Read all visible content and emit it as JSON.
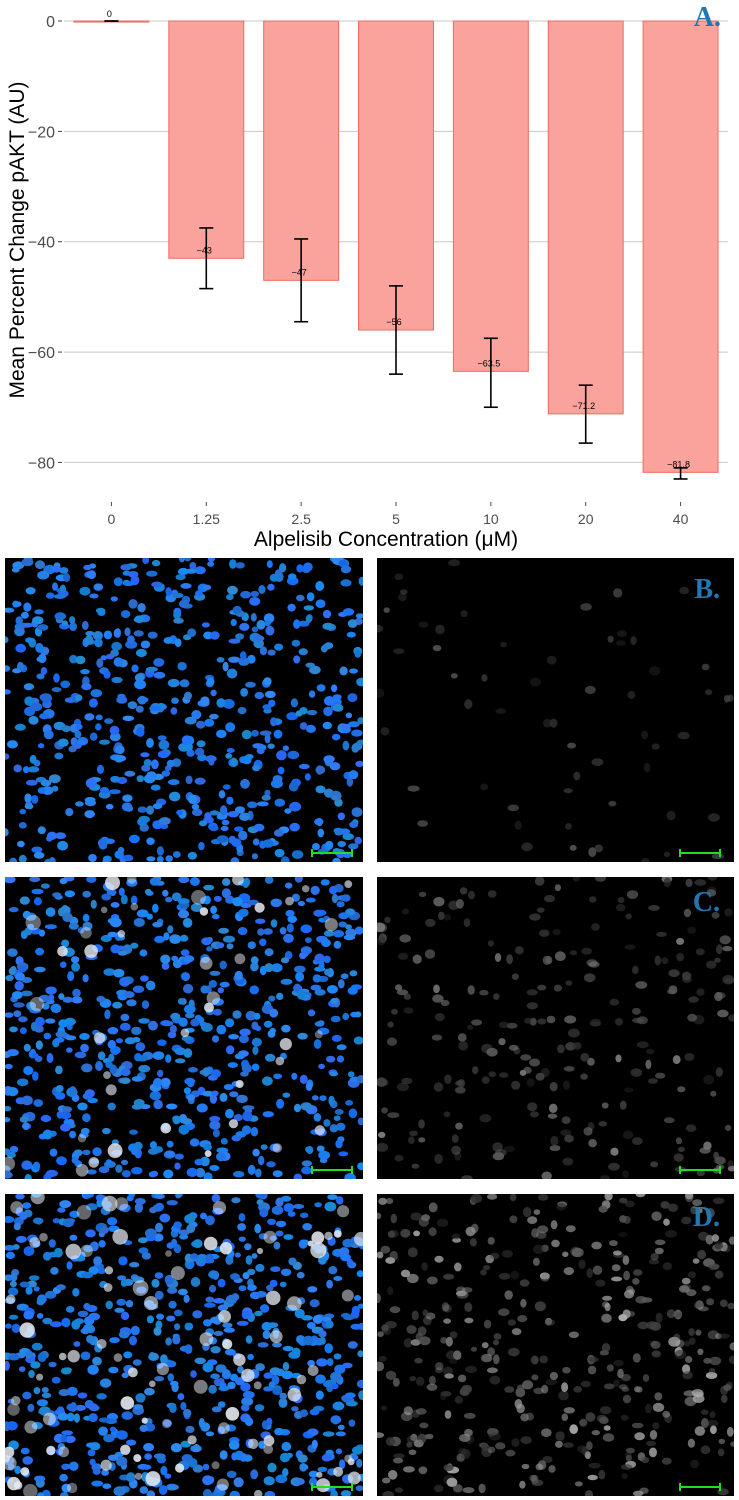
{
  "chart_data": {
    "type": "bar",
    "categories": [
      "0",
      "1.25",
      "2.5",
      "5",
      "10",
      "20",
      "40"
    ],
    "values": [
      0,
      -43,
      -47,
      -56,
      -63.5,
      -71.2,
      -81.8
    ],
    "data_labels": [
      "0",
      "−43",
      "−47",
      "−56",
      "−63.5",
      "−71.2",
      "−81.8"
    ],
    "error_bars": [
      {
        "low": 0,
        "high": 0
      },
      {
        "low": -48.5,
        "high": -37.5
      },
      {
        "low": -54.5,
        "high": -39.5
      },
      {
        "low": -64,
        "high": -48
      },
      {
        "low": -70,
        "high": -57.5
      },
      {
        "low": -76.5,
        "high": -66
      },
      {
        "low": -83,
        "high": -81
      }
    ],
    "ylabel": "Mean Percent Change pAKT (AU)",
    "xlabel": "Alpelisib Concentration (μM)",
    "yticks": [
      0,
      -20,
      -40,
      -60,
      -80
    ],
    "ytick_labels": [
      "0",
      "−20",
      "−40",
      "−60",
      "−80"
    ],
    "ylim": [
      -85,
      2
    ],
    "grid": true,
    "bar_color": "#f9a39c",
    "bar_edge_color": "#ee6b62"
  },
  "panels": {
    "a": "A.",
    "b": "B.",
    "c": "C.",
    "d": "D."
  },
  "colors": {
    "nuclei": "#1e73ff",
    "panel_letter": "#1f78b4",
    "scale_bar": "#22dd22"
  }
}
